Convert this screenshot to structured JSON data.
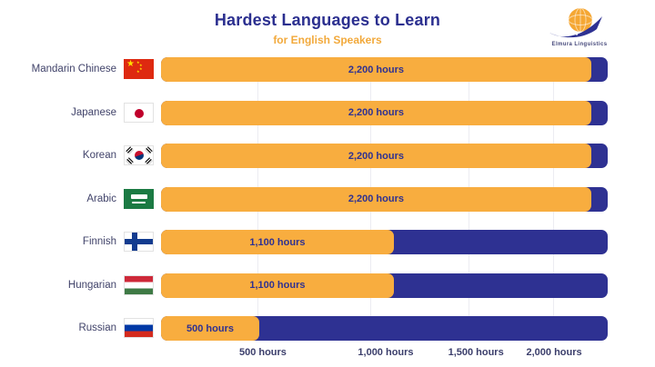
{
  "title": "Hardest Languages to Learn",
  "subtitle": "for English Speakers",
  "logo": {
    "text": "Elmura Linguistics"
  },
  "colors": {
    "bar_fill": "#F8AD3F",
    "bar_track": "#2E3192",
    "title": "#2B2F8F",
    "subtitle": "#F2A93B",
    "label_text": "#41436A"
  },
  "chart_data": {
    "type": "bar",
    "orientation": "horizontal",
    "title": "Hardest Languages to Learn",
    "subtitle": "for English Speakers",
    "categories": [
      "Mandarin Chinese",
      "Japanese",
      "Korean",
      "Arabic",
      "Finnish",
      "Hungarian",
      "Russian"
    ],
    "values": [
      2200,
      2200,
      2200,
      2200,
      1100,
      1100,
      500
    ],
    "value_labels": [
      "2,200 hours",
      "2,200 hours",
      "2,200 hours",
      "2,200 hours",
      "1,100 hours",
      "1,100 hours",
      "500 hours"
    ],
    "unit": "hours",
    "xlim": [
      0,
      2300
    ],
    "x_tick_labels": [
      "500 hours",
      "1,000 hours",
      "1,500 hours",
      "2,000 hours"
    ],
    "x_tick_values": [
      500,
      1000,
      1500,
      2000
    ],
    "grid": true,
    "legend": false
  },
  "rows": [
    {
      "label": "Mandarin Chinese",
      "flag": "china",
      "flag_name": "china-flag-icon",
      "value": 2200,
      "value_label": "2,200 hours",
      "pct": 96.3
    },
    {
      "label": "Japanese",
      "flag": "japan",
      "flag_name": "japan-flag-icon",
      "value": 2200,
      "value_label": "2,200 hours",
      "pct": 96.3
    },
    {
      "label": "Korean",
      "flag": "korea",
      "flag_name": "south-korea-flag-icon",
      "value": 2200,
      "value_label": "2,200 hours",
      "pct": 96.3
    },
    {
      "label": "Arabic",
      "flag": "saudi",
      "flag_name": "saudi-arabia-flag-icon",
      "value": 2200,
      "value_label": "2,200 hours",
      "pct": 96.3
    },
    {
      "label": "Finnish",
      "flag": "finland",
      "flag_name": "finland-flag-icon",
      "value": 1100,
      "value_label": "1,100 hours",
      "pct": 52.1
    },
    {
      "label": "Hungarian",
      "flag": "hungary",
      "flag_name": "hungary-flag-icon",
      "value": 1100,
      "value_label": "1,100 hours",
      "pct": 52.1
    },
    {
      "label": "Russian",
      "flag": "russia",
      "flag_name": "russia-flag-icon",
      "value": 500,
      "value_label": "500 hours",
      "pct": 22.0
    }
  ],
  "axis": {
    "ticks": [
      {
        "label": "500 hours",
        "label_pct": 22.8,
        "line_pct": 21.6
      },
      {
        "label": "1,000 hours",
        "label_pct": 50.3,
        "line_pct": 46.8
      },
      {
        "label": "1,500 hours",
        "label_pct": 70.5,
        "line_pct": 68.8
      },
      {
        "label": "2,000 hours",
        "label_pct": 88.0,
        "line_pct": 87.8
      }
    ]
  }
}
